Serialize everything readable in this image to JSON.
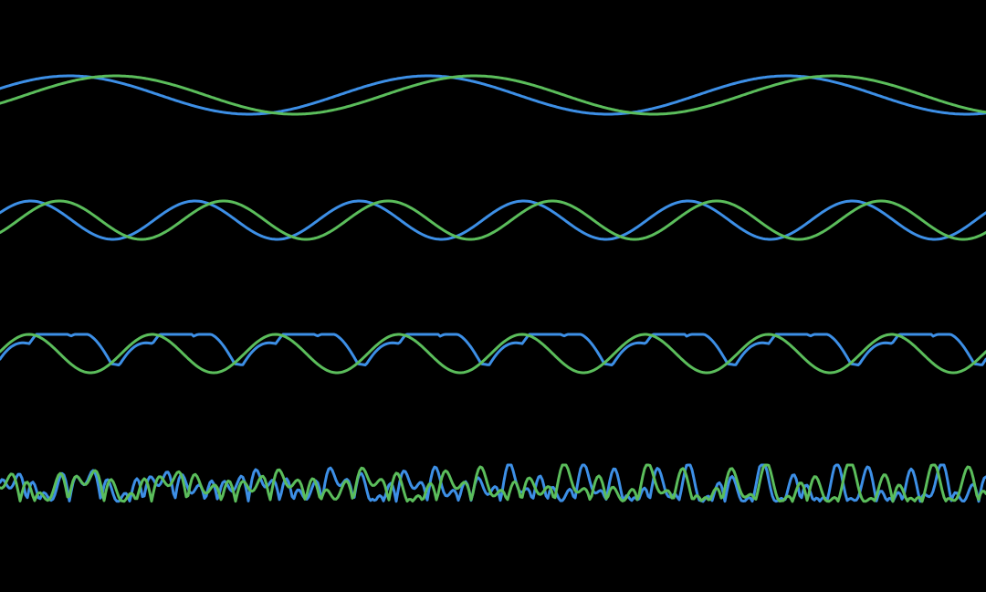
{
  "colors": {
    "background": "#000000",
    "blue": "#3d8fe6",
    "green": "#5bbd5b"
  },
  "chart_data": [
    {
      "type": "line",
      "x_range": [
        0,
        1080
      ],
      "y_range": [
        -1,
        1
      ],
      "series": [
        {
          "color": "#3d8fe6",
          "kind": "sine",
          "amp": 1,
          "period": 393,
          "phase": 0.35,
          "exponent": 1
        },
        {
          "color": "#5bbd5b",
          "kind": "sine",
          "amp": 1,
          "period": 393,
          "phase": -0.45,
          "exponent": 1
        }
      ]
    },
    {
      "type": "line",
      "x_range": [
        0,
        1080
      ],
      "y_range": [
        -1,
        1
      ],
      "series": [
        {
          "color": "#3d8fe6",
          "kind": "sine",
          "amp": 1,
          "period": 180,
          "phase": 0.4,
          "exponent": 1
        },
        {
          "color": "#5bbd5b",
          "kind": "sine",
          "amp": 1,
          "period": 180,
          "phase": -0.7,
          "exponent": 1
        }
      ]
    },
    {
      "type": "line",
      "x_range": [
        0,
        1080
      ],
      "y_range": [
        -1,
        1
      ],
      "series": [
        {
          "color": "#3d8fe6",
          "kind": "folded",
          "amp": 1,
          "period": 270,
          "phase": 0.1,
          "exponent": 1
        },
        {
          "color": "#5bbd5b",
          "kind": "sine",
          "amp": 1,
          "period": 135,
          "phase": 0.1,
          "exponent": 1
        }
      ]
    },
    {
      "type": "line",
      "x_range": [
        0,
        1080
      ],
      "y_range": [
        -1,
        1
      ],
      "series": [
        {
          "color": "#3d8fe6",
          "kind": "chaotic",
          "amp": 1,
          "period": 55,
          "phase": 0.3,
          "exponent": 1
        },
        {
          "color": "#5bbd5b",
          "kind": "chaotic",
          "amp": 1,
          "period": 62,
          "phase": 1.4,
          "exponent": 1
        }
      ]
    }
  ]
}
